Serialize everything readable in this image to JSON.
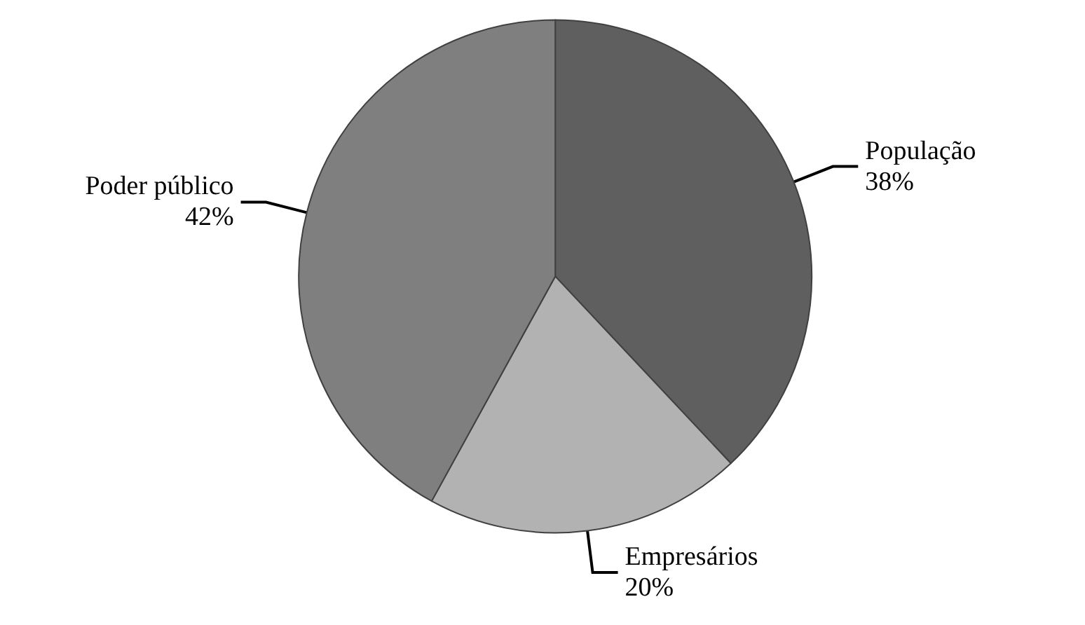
{
  "chart_data": {
    "type": "pie",
    "categories": [
      "População",
      "Empresários",
      "Poder público"
    ],
    "values": [
      38,
      20,
      42
    ],
    "colors": [
      "#5f5f5f",
      "#b2b2b2",
      "#7f7f7f"
    ],
    "value_labels": [
      "38%",
      "20%",
      "42%"
    ],
    "legend": false
  }
}
